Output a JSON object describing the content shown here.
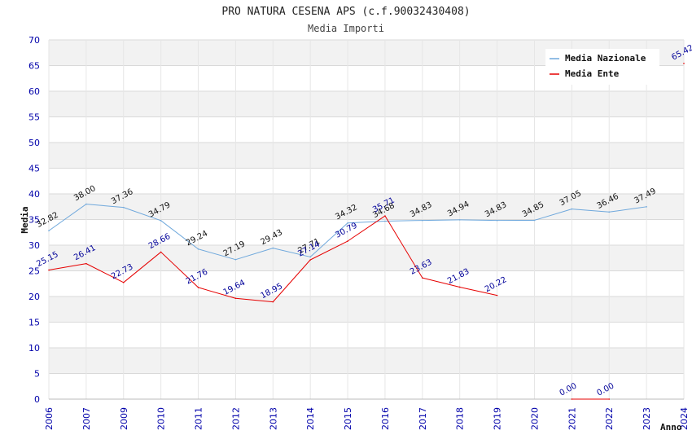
{
  "chart_data": {
    "type": "line",
    "title": "PRO NATURA CESENA APS (c.f.90032430408)",
    "subtitle": "Media Importi",
    "ylabel": "Media",
    "xlabel": "Anno",
    "ylim": [
      0,
      70
    ],
    "yticks": [
      0,
      5,
      10,
      15,
      20,
      25,
      30,
      35,
      40,
      45,
      50,
      55,
      60,
      65,
      70
    ],
    "categories": [
      "2006",
      "2007",
      "2009",
      "2010",
      "2011",
      "2012",
      "2013",
      "2014",
      "2015",
      "2016",
      "2017",
      "2018",
      "2019",
      "2020",
      "2021",
      "2022",
      "2023",
      "2024"
    ],
    "series": [
      {
        "name": "Media Nazionale",
        "color": "#6fa8dc",
        "values": [
          32.82,
          38.0,
          37.36,
          34.79,
          29.24,
          27.19,
          29.43,
          27.71,
          34.32,
          34.68,
          34.83,
          34.94,
          34.83,
          34.85,
          37.05,
          36.46,
          37.49,
          null
        ],
        "labels": [
          "32.82",
          "38.00",
          "37.36",
          "34.79",
          "29.24",
          "27.19",
          "29.43",
          "27.71",
          "34.32",
          "34.68",
          "34.83",
          "34.94",
          "34.83",
          "34.85",
          "37.05",
          "36.46",
          "37.49",
          null
        ]
      },
      {
        "name": "Media Ente",
        "color": "#e60000",
        "values": [
          25.15,
          26.41,
          22.73,
          28.66,
          21.76,
          19.64,
          18.95,
          27.14,
          30.79,
          35.71,
          23.63,
          21.83,
          20.22,
          null,
          0,
          0,
          null,
          65.42
        ],
        "labels": [
          "25.15",
          "26.41",
          "22.73",
          "28.66",
          "21.76",
          "19.64",
          "18.95",
          "27.14",
          "30.79",
          "35.71",
          "23.63",
          "21.83",
          "20.22",
          null,
          "0.00",
          "0.00",
          null,
          "65.42"
        ]
      }
    ],
    "legend": "top-right",
    "grid": true
  }
}
